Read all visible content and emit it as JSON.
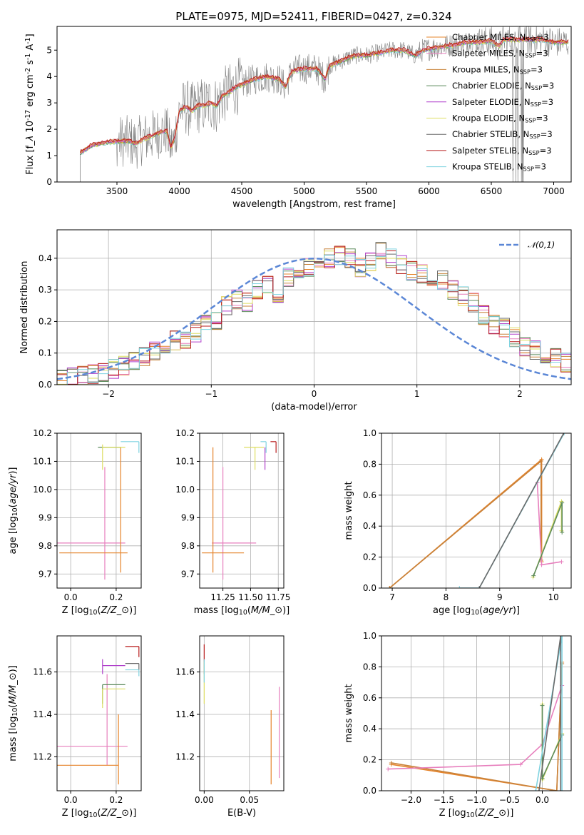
{
  "figure": {
    "title": "PLATE=0975, MJD=52411, FIBERID=0427, z=0.324"
  },
  "colors": {
    "c_miles": "#e6842b",
    "s_miles": "#e77fbd",
    "k_miles": "#c8823a",
    "c_elodie": "#5b8a5b",
    "s_elodie": "#b03fcb",
    "k_elodie": "#dede62",
    "c_stelib": "#6a6a6a",
    "s_stelib": "#b81c1c",
    "k_stelib": "#7fd3e0",
    "normal": "#5b87d6",
    "grid": "#b0b0b0"
  },
  "chart_data": [
    {
      "id": "spectrum",
      "type": "line",
      "xlabel": "wavelength [Angstrom, rest frame]",
      "ylabel": "Flux [f$_\\lambda$ 10$^{-17}$ erg cm$^{-2}$ s$^{-1}$ A$^{-1}$]",
      "xlim": [
        3020,
        7140
      ],
      "ylim": [
        0,
        5.9
      ],
      "xticks": [
        3500,
        4000,
        4500,
        5000,
        5500,
        6000,
        6500,
        7000
      ],
      "yticks": [
        0,
        1,
        2,
        3,
        4,
        5
      ],
      "grid": false,
      "legend_position": "upper right",
      "legend": [
        {
          "label": "Chabrier MILES, N$_{SSP}$=3",
          "color_key": "c_miles"
        },
        {
          "label": "Salpeter MILES, N$_{SSP}$=3",
          "color_key": "s_miles"
        },
        {
          "label": "Kroupa MILES, N$_{SSP}$=3",
          "color_key": "k_miles"
        },
        {
          "label": "Chabrier ELODIE, N$_{SSP}$=3",
          "color_key": "c_elodie"
        },
        {
          "label": "Salpeter ELODIE, N$_{SSP}$=3",
          "color_key": "s_elodie"
        },
        {
          "label": "Kroupa ELODIE, N$_{SSP}$=3",
          "color_key": "k_elodie"
        },
        {
          "label": "Chabrier STELIB, N$_{SSP}$=3",
          "color_key": "c_stelib"
        },
        {
          "label": "Salpeter STELIB, N$_{SSP}$=3",
          "color_key": "s_stelib"
        },
        {
          "label": "Kroupa STELIB, N$_{SSP}$=3",
          "color_key": "k_stelib"
        }
      ],
      "model_continuum": [
        [
          3205,
          1.1
        ],
        [
          3250,
          1.25
        ],
        [
          3300,
          1.4
        ],
        [
          3400,
          1.5
        ],
        [
          3500,
          1.55
        ],
        [
          3600,
          1.55
        ],
        [
          3650,
          1.45
        ],
        [
          3700,
          1.6
        ],
        [
          3750,
          1.7
        ],
        [
          3800,
          1.8
        ],
        [
          3860,
          1.9
        ],
        [
          3900,
          1.95
        ],
        [
          3930,
          1.3
        ],
        [
          3960,
          1.6
        ],
        [
          4000,
          2.7
        ],
        [
          4050,
          2.85
        ],
        [
          4100,
          2.7
        ],
        [
          4150,
          2.9
        ],
        [
          4200,
          2.9
        ],
        [
          4250,
          3.0
        ],
        [
          4300,
          2.9
        ],
        [
          4350,
          3.3
        ],
        [
          4400,
          3.4
        ],
        [
          4450,
          3.6
        ],
        [
          4500,
          3.7
        ],
        [
          4600,
          3.9
        ],
        [
          4700,
          4.0
        ],
        [
          4800,
          3.9
        ],
        [
          4850,
          3.6
        ],
        [
          4900,
          4.2
        ],
        [
          5000,
          4.3
        ],
        [
          5100,
          4.3
        ],
        [
          5170,
          3.9
        ],
        [
          5200,
          4.4
        ],
        [
          5300,
          4.6
        ],
        [
          5400,
          4.8
        ],
        [
          5500,
          4.8
        ],
        [
          5600,
          4.9
        ],
        [
          5700,
          5.0
        ],
        [
          5800,
          5.0
        ],
        [
          5890,
          4.8
        ],
        [
          5950,
          5.0
        ],
        [
          6050,
          5.1
        ],
        [
          6200,
          5.2
        ],
        [
          6300,
          5.3
        ],
        [
          6400,
          5.3
        ],
        [
          6500,
          5.35
        ],
        [
          6560,
          5.15
        ],
        [
          6600,
          5.4
        ],
        [
          6700,
          5.4
        ],
        [
          6800,
          5.4
        ],
        [
          6900,
          5.4
        ],
        [
          7000,
          5.3
        ],
        [
          7100,
          5.3
        ]
      ]
    },
    {
      "id": "residuals",
      "type": "histogram",
      "xlabel": "(data-model)/error",
      "ylabel": "Normed distribution",
      "xlim": [
        -2.5,
        2.5
      ],
      "ylim": [
        0,
        0.49
      ],
      "xticks": [
        -2,
        -1,
        0,
        1,
        2
      ],
      "yticks": [
        0.0,
        0.1,
        0.2,
        0.3,
        0.4
      ],
      "grid": true,
      "bin_width": 0.1,
      "bin_start": -2.5,
      "reference_values": [
        0.02,
        0.023,
        0.028,
        0.034,
        0.04,
        0.05,
        0.06,
        0.075,
        0.09,
        0.105,
        0.13,
        0.14,
        0.14,
        0.165,
        0.19,
        0.2,
        0.25,
        0.27,
        0.26,
        0.3,
        0.32,
        0.29,
        0.34,
        0.35,
        0.37,
        0.36,
        0.4,
        0.41,
        0.4,
        0.37,
        0.39,
        0.42,
        0.4,
        0.38,
        0.36,
        0.35,
        0.31,
        0.33,
        0.3,
        0.28,
        0.26,
        0.22,
        0.19,
        0.18,
        0.15,
        0.12,
        0.11,
        0.09,
        0.085,
        0.07
      ],
      "legend": [
        {
          "label": "$\\mathcal{N}(0,1)$",
          "color_key": "normal"
        }
      ]
    },
    {
      "id": "age_vs_Z",
      "type": "errorbar",
      "xlabel": "Z [log$_{10}$($Z/Z_\\odot$)]",
      "ylabel": "age  [log$_{10}$($age/yr$)]",
      "xlim": [
        -0.06,
        0.31
      ],
      "ylim": [
        9.65,
        10.2
      ],
      "xticks": [
        0.0,
        0.2
      ],
      "yticks": [
        9.7,
        9.8,
        9.9,
        10.0,
        10.1,
        10.2
      ],
      "grid": true,
      "points": [
        {
          "x": 0.15,
          "y": 9.81,
          "xerr": [
            0.21,
            0.09
          ],
          "yerr": [
            0.13,
            0.27
          ],
          "color_key": "s_miles"
        },
        {
          "x": 0.22,
          "y": 9.775,
          "xerr": [
            0.27,
            0.03
          ],
          "yerr": [
            0.07,
            0.375
          ],
          "color_key": "c_miles"
        },
        {
          "x": 0.22,
          "y": 10.15,
          "xerr": [
            0.1,
            0.0
          ],
          "yerr": [
            0.0,
            0.0
          ],
          "color_key": "c_elodie"
        },
        {
          "x": 0.14,
          "y": 10.15,
          "xerr": [
            0.0,
            0.1
          ],
          "yerr": [
            0.08,
            0.01
          ],
          "color_key": "k_elodie"
        },
        {
          "x": 0.3,
          "y": 10.17,
          "xerr": [
            0.08,
            0.0
          ],
          "yerr": [
            0.04,
            0.0
          ],
          "color_key": "k_stelib"
        }
      ]
    },
    {
      "id": "age_vs_mass",
      "type": "errorbar",
      "xlabel": "mass [log$_{10}$($M/M_\\odot$)]",
      "ylabel": "",
      "xlim": [
        11.04,
        11.8
      ],
      "ylim": [
        9.65,
        10.2
      ],
      "xticks": [
        11.25,
        11.5,
        11.75
      ],
      "yticks": [
        9.7,
        9.8,
        9.9,
        10.0,
        10.1,
        10.2
      ],
      "grid": true,
      "points": [
        {
          "x": 11.25,
          "y": 9.81,
          "xerr": [
            0.1,
            0.3
          ],
          "yerr": [
            0.13,
            0.27
          ],
          "color_key": "s_miles"
        },
        {
          "x": 11.16,
          "y": 9.775,
          "xerr": [
            0.1,
            0.28
          ],
          "yerr": [
            0.07,
            0.375
          ],
          "color_key": "c_miles"
        },
        {
          "x": 11.54,
          "y": 10.15,
          "xerr": [
            0.1,
            0.08
          ],
          "yerr": [
            0.08,
            0.0
          ],
          "color_key": "k_elodie"
        },
        {
          "x": 11.63,
          "y": 10.15,
          "xerr": [
            0.0,
            0.0
          ],
          "yerr": [
            0.08,
            0.0
          ],
          "color_key": "s_elodie"
        },
        {
          "x": 11.73,
          "y": 10.17,
          "xerr": [
            0.05,
            0.0
          ],
          "yerr": [
            0.04,
            0.0
          ],
          "color_key": "s_stelib"
        },
        {
          "x": 11.64,
          "y": 10.17,
          "xerr": [
            0.05,
            0.0
          ],
          "yerr": [
            0.04,
            0.0
          ],
          "color_key": "k_stelib"
        }
      ]
    },
    {
      "id": "weight_vs_age",
      "type": "line",
      "xlabel": "age  [log$_{10}$($age/yr$)]",
      "ylabel": "mass weight",
      "xlim": [
        6.8,
        10.33
      ],
      "ylim": [
        0,
        1.0
      ],
      "xticks": [
        7,
        8,
        9,
        10
      ],
      "yticks": [
        0.0,
        0.2,
        0.4,
        0.6,
        0.8,
        1.0
      ],
      "grid": true,
      "series": [
        {
          "color_key": "c_miles",
          "x": [
            6.95,
            9.78,
            9.78
          ],
          "y": [
            0.0,
            0.83,
            0.17
          ]
        },
        {
          "color_key": "k_miles",
          "x": [
            6.95,
            9.77,
            9.77
          ],
          "y": [
            0.0,
            0.82,
            0.18
          ]
        },
        {
          "color_key": "s_miles",
          "x": [
            10.15,
            9.78,
            9.7,
            9.7
          ],
          "y": [
            0.17,
            0.15,
            0.68,
            0.68
          ]
        },
        {
          "color_key": "k_elodie",
          "x": [
            9.62,
            10.15,
            10.15
          ],
          "y": [
            0.07,
            0.56,
            0.37
          ]
        },
        {
          "color_key": "c_elodie",
          "x": [
            9.63,
            10.16,
            10.16
          ],
          "y": [
            0.08,
            0.55,
            0.36
          ]
        },
        {
          "color_key": "k_stelib",
          "x": [
            8.25,
            8.62,
            10.2
          ],
          "y": [
            0.0,
            0.0,
            1.0
          ]
        },
        {
          "color_key": "c_stelib",
          "x": [
            8.62,
            10.19
          ],
          "y": [
            0.0,
            1.0
          ]
        }
      ]
    },
    {
      "id": "mass_vs_Z",
      "type": "errorbar",
      "xlabel": "Z [log$_{10}$($Z/Z_\\odot$)]",
      "ylabel": "mass [log$_{10}$($M/M_\\odot$)]",
      "xlim": [
        -0.06,
        0.31
      ],
      "ylim": [
        11.04,
        11.77
      ],
      "xticks": [
        0.0,
        0.2
      ],
      "yticks": [
        11.2,
        11.4,
        11.6
      ],
      "grid": true,
      "points": [
        {
          "x": 0.16,
          "y": 11.25,
          "xerr": [
            0.22,
            0.09
          ],
          "yerr": [
            0.09,
            0.34
          ],
          "color_key": "s_miles"
        },
        {
          "x": 0.21,
          "y": 11.16,
          "xerr": [
            0.27,
            0.0
          ],
          "yerr": [
            0.09,
            0.24
          ],
          "color_key": "c_miles"
        },
        {
          "x": 0.14,
          "y": 11.63,
          "xerr": [
            0.0,
            0.1
          ],
          "yerr": [
            0.04,
            0.03
          ],
          "color_key": "s_elodie"
        },
        {
          "x": 0.14,
          "y": 11.54,
          "xerr": [
            0.0,
            0.1
          ],
          "yerr": [
            0.09,
            0.0
          ],
          "color_key": "c_elodie"
        },
        {
          "x": 0.14,
          "y": 11.52,
          "xerr": [
            0.0,
            0.1
          ],
          "yerr": [
            0.09,
            0.0
          ],
          "color_key": "k_elodie"
        },
        {
          "x": 0.3,
          "y": 11.72,
          "xerr": [
            0.06,
            0.0
          ],
          "yerr": [
            0.05,
            0.0
          ],
          "color_key": "s_stelib"
        },
        {
          "x": 0.3,
          "y": 11.64,
          "xerr": [
            0.06,
            0.0
          ],
          "yerr": [
            0.03,
            0.0
          ],
          "color_key": "c_stelib"
        },
        {
          "x": 0.3,
          "y": 11.61,
          "xerr": [
            0.06,
            0.0
          ],
          "yerr": [
            0.03,
            0.0
          ],
          "color_key": "k_stelib"
        }
      ]
    },
    {
      "id": "mass_vs_ebv",
      "type": "errorbar",
      "xlabel": "E(B-V)",
      "ylabel": "",
      "xlim": [
        -0.005,
        0.088
      ],
      "ylim": [
        11.04,
        11.77
      ],
      "xticks": [
        0.0,
        0.05
      ],
      "yticks": [
        11.2,
        11.4,
        11.6
      ],
      "grid": true,
      "points": [
        {
          "x": 0.0,
          "y": 11.63,
          "yerr": [
            0.04,
            0.1
          ],
          "color_key": "s_stelib"
        },
        {
          "x": 0.0,
          "y": 11.55,
          "yerr": [
            0.1,
            0.1
          ],
          "color_key": "k_elodie"
        },
        {
          "x": 0.0,
          "y": 11.6,
          "yerr": [
            0.05,
            0.06
          ],
          "color_key": "k_stelib"
        },
        {
          "x": 0.074,
          "y": 11.2,
          "yerr": [
            0.13,
            0.22
          ],
          "color_key": "c_miles"
        },
        {
          "x": 0.083,
          "y": 11.25,
          "yerr": [
            0.15,
            0.28
          ],
          "color_key": "s_miles"
        }
      ]
    },
    {
      "id": "weight_vs_Z",
      "type": "line",
      "xlabel": "Z [log$_{10}$($Z/Z_\\odot$)]",
      "ylabel": "mass weight",
      "xlim": [
        -2.45,
        0.44
      ],
      "ylim": [
        0,
        1.0
      ],
      "xticks": [
        -2.0,
        -1.5,
        -1.0,
        -0.5,
        0.0
      ],
      "yticks": [
        0.0,
        0.2,
        0.4,
        0.6,
        0.8,
        1.0
      ],
      "grid": true,
      "series": [
        {
          "color_key": "c_miles",
          "x": [
            -2.3,
            0.22,
            0.3
          ],
          "y": [
            0.17,
            0.0,
            0.83
          ]
        },
        {
          "color_key": "k_miles",
          "x": [
            -2.3,
            0.22,
            0.3
          ],
          "y": [
            0.18,
            0.0,
            0.82
          ]
        },
        {
          "color_key": "s_miles",
          "x": [
            -2.35,
            -0.33,
            0.0,
            0.3
          ],
          "y": [
            0.14,
            0.17,
            0.3,
            0.68
          ]
        },
        {
          "color_key": "k_elodie",
          "x": [
            0.0,
            0.0,
            0.3
          ],
          "y": [
            0.56,
            0.07,
            0.37
          ]
        },
        {
          "color_key": "c_elodie",
          "x": [
            0.0,
            0.0,
            0.3
          ],
          "y": [
            0.55,
            0.08,
            0.36
          ]
        },
        {
          "color_key": "k_stelib",
          "x": [
            -0.1,
            0.3,
            0.3
          ],
          "y": [
            0.0,
            1.0,
            0.0
          ]
        },
        {
          "color_key": "c_stelib",
          "x": [
            -0.05,
            0.28,
            0.28
          ],
          "y": [
            0.0,
            1.0,
            0.0
          ]
        }
      ]
    }
  ]
}
